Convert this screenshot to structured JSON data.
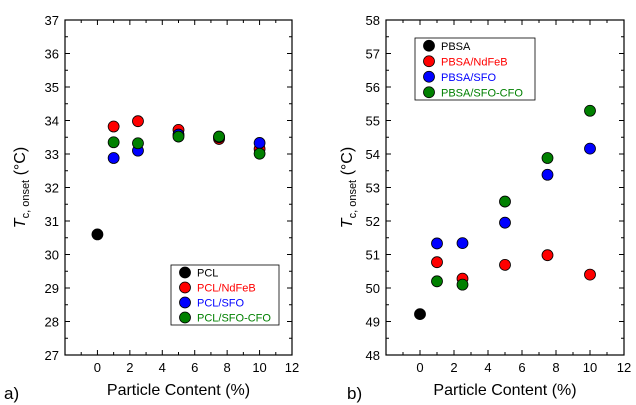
{
  "chart_data": [
    {
      "panel_label": "a)",
      "type": "scatter",
      "xlabel": "Particle Content (%)",
      "ylabel_main": "T",
      "ylabel_sub": "c, onset",
      "ylabel_unit": " (°C)",
      "xlim": [
        -2,
        12
      ],
      "ylim": [
        27,
        37
      ],
      "xticks": [
        0,
        2,
        4,
        6,
        8,
        10,
        12
      ],
      "yticks": [
        27,
        28,
        29,
        30,
        31,
        32,
        33,
        34,
        35,
        36,
        37
      ],
      "legend_position": "bottom-right",
      "series": [
        {
          "name": "PCL",
          "color": "#000000",
          "x": [
            0
          ],
          "y": [
            30.6
          ]
        },
        {
          "name": "PCL/NdFeB",
          "color": "#ff0000",
          "x": [
            1,
            2.5,
            5,
            7.5,
            10
          ],
          "y": [
            33.82,
            33.98,
            33.72,
            33.45,
            33.15
          ]
        },
        {
          "name": "PCL/SFO",
          "color": "#0000ff",
          "x": [
            1,
            2.5,
            5,
            7.5,
            10
          ],
          "y": [
            32.88,
            33.1,
            33.58,
            33.5,
            33.33
          ]
        },
        {
          "name": "PCL/SFO-CFO",
          "color": "#008000",
          "x": [
            1,
            2.5,
            5,
            7.5,
            10
          ],
          "y": [
            33.35,
            33.32,
            33.52,
            33.52,
            33.01
          ]
        }
      ]
    },
    {
      "panel_label": "b)",
      "type": "scatter",
      "xlabel": "Particle Content (%)",
      "ylabel_main": "T",
      "ylabel_sub": "c, onset",
      "ylabel_unit": " (°C)",
      "xlim": [
        -2,
        12
      ],
      "ylim": [
        48,
        58
      ],
      "xticks": [
        0,
        2,
        4,
        6,
        8,
        10,
        12
      ],
      "yticks": [
        48,
        49,
        50,
        51,
        52,
        53,
        54,
        55,
        56,
        57,
        58
      ],
      "legend_position": "top-left",
      "series": [
        {
          "name": "PBSA",
          "color": "#000000",
          "x": [
            0
          ],
          "y": [
            49.22
          ]
        },
        {
          "name": "PBSA/NdFeB",
          "color": "#ff0000",
          "x": [
            1,
            2.5,
            5,
            7.5,
            10
          ],
          "y": [
            50.77,
            50.28,
            50.69,
            50.98,
            50.4
          ]
        },
        {
          "name": "PBSA/SFO",
          "color": "#0000ff",
          "x": [
            1,
            2.5,
            5,
            7.5,
            10
          ],
          "y": [
            51.33,
            51.34,
            51.95,
            53.38,
            54.16
          ]
        },
        {
          "name": "PBSA/SFO-CFO",
          "color": "#008000",
          "x": [
            1,
            2.5,
            5,
            7.5,
            10
          ],
          "y": [
            50.2,
            50.1,
            52.58,
            53.88,
            55.29
          ]
        }
      ]
    }
  ]
}
